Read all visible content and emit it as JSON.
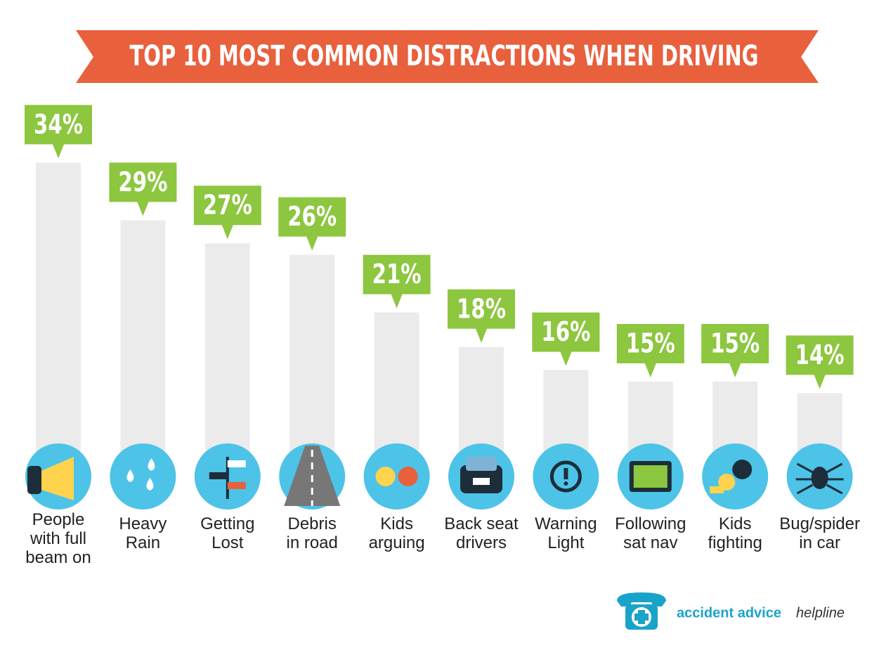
{
  "chart_data": {
    "type": "bar",
    "title": "TOP 10 MOST COMMON DISTRACTIONS WHEN DRIVING",
    "categories": [
      "People\nwith full\nbeam on",
      "Heavy\nRain",
      "Getting\nLost",
      "Debris\nin road",
      "Kids\narguing",
      "Back seat\ndrivers",
      "Warning\nLight",
      "Following\nsat nav",
      "Kids\nfighting",
      "Bug/spider\nin car"
    ],
    "values": [
      34,
      29,
      27,
      26,
      21,
      18,
      16,
      15,
      15,
      14
    ],
    "value_labels": [
      "34%",
      "29%",
      "27%",
      "26%",
      "21%",
      "18%",
      "16%",
      "15%",
      "15%",
      "14%"
    ],
    "color": "#ebebeb",
    "label_color": "#8dc63f",
    "icon_color": "#4dc3e8",
    "title_color": "#e8603c"
  },
  "logo": {
    "name": "accident advice",
    "suffix": "helpline"
  }
}
